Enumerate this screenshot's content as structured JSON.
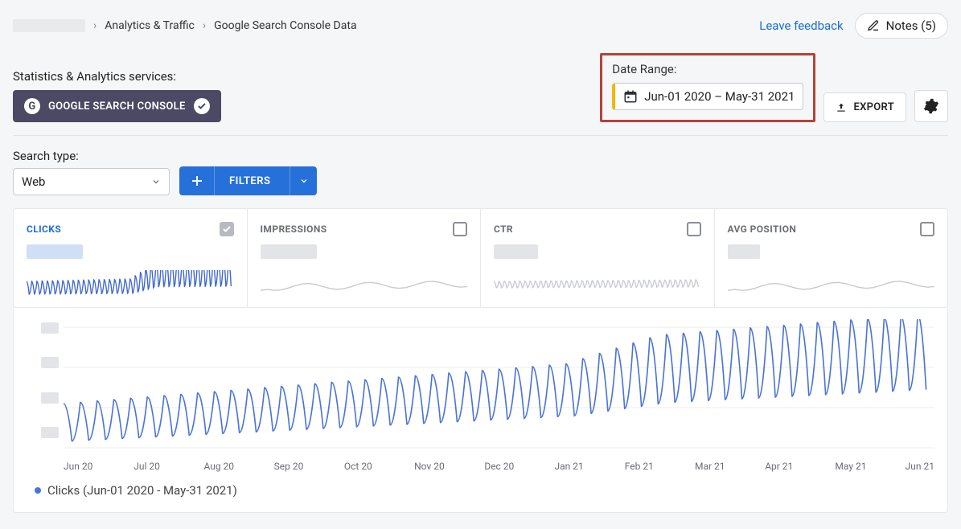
{
  "breadcrumb": {
    "section": "Analytics & Traffic",
    "page": "Google Search Console Data"
  },
  "topbar": {
    "feedback": "Leave feedback",
    "notes_label": "Notes (5)"
  },
  "services": {
    "label": "Statistics & Analytics services:",
    "chip_text": "GOOGLE SEARCH CONSOLE"
  },
  "date_range": {
    "label": "Date Range:",
    "value": "Jun-01 2020  –  May-31 2021",
    "highlight_border": "#b24438",
    "accent_left": "#f2b705"
  },
  "export_label": "EXPORT",
  "search_type": {
    "label": "Search type:",
    "selected": "Web"
  },
  "filters_label": "FILTERS",
  "cards": {
    "clicks": {
      "title": "CLICKS",
      "active": true,
      "checked": true
    },
    "impressions": {
      "title": "IMPRESSIONS",
      "active": false,
      "checked": false
    },
    "ctr": {
      "title": "CTR",
      "active": false,
      "checked": false
    },
    "avg_position": {
      "title": "AVG POSITION",
      "active": false,
      "checked": false
    }
  },
  "spark_style": {
    "active_color": "#3f67cf",
    "inactive_color": "#c8cad0",
    "stroke_width": 1.4
  },
  "main_chart": {
    "line_color": "#4b74d8",
    "grid_color": "#ececef",
    "stroke_width": 1.6,
    "background": "#ffffff",
    "x_labels": [
      "Jun 20",
      "Jul 20",
      "Aug 20",
      "Sep 20",
      "Oct 20",
      "Nov 20",
      "Dec 20",
      "Jan 21",
      "Feb 21",
      "Mar 21",
      "Apr 21",
      "May 21",
      "Jun 21"
    ],
    "y_ticks": 4,
    "weeks": 52,
    "low_start": 10,
    "low_end": 50,
    "high_start": 45,
    "high_end": 108,
    "bump_week": 30,
    "ylim": [
      0,
      120
    ]
  },
  "legend": {
    "text": "Clicks (Jun-01 2020 - May-31 2021)"
  },
  "colors": {
    "link": "#1a6fd6",
    "chip_bg": "#4b4963",
    "primary_blue": "#2671d9"
  }
}
